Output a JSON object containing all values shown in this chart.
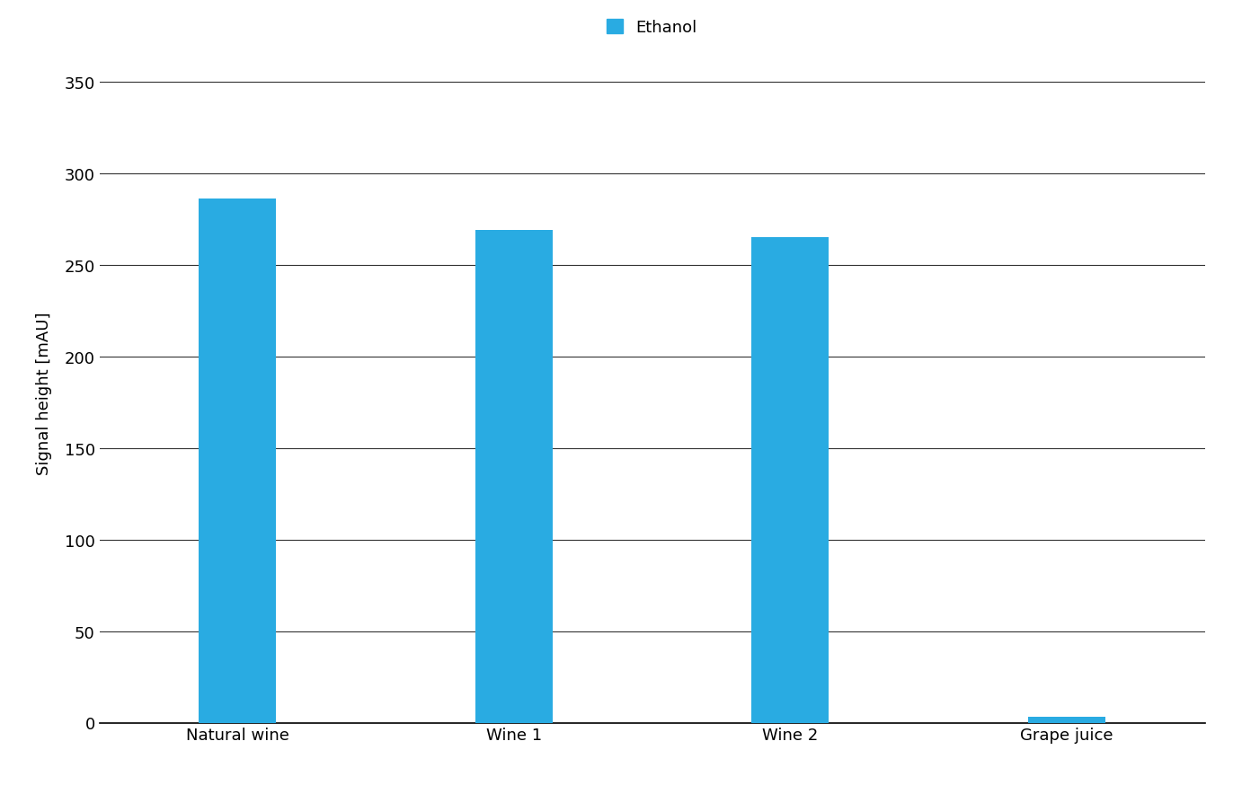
{
  "categories": [
    "Natural wine",
    "Wine 1",
    "Wine 2",
    "Grape juice"
  ],
  "values": [
    286,
    269,
    265,
    3
  ],
  "bar_color": "#29ABE2",
  "legend_label": "Ethanol",
  "ylabel": "Signal height [mAU]",
  "ylim": [
    0,
    360
  ],
  "yticks": [
    0,
    50,
    100,
    150,
    200,
    250,
    300,
    350
  ],
  "background_color": "#ffffff",
  "bar_width": 0.28,
  "legend_fontsize": 13,
  "axis_fontsize": 13,
  "tick_fontsize": 13,
  "grid_color": "#333333",
  "grid_linewidth": 0.8
}
